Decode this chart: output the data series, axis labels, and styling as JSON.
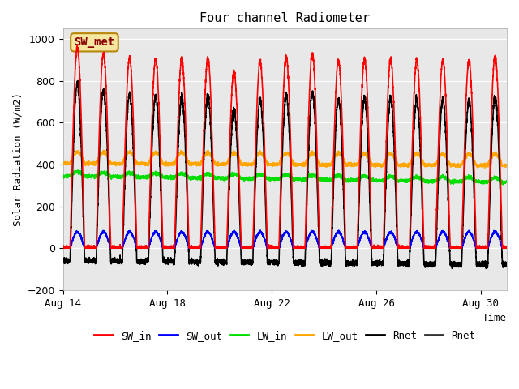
{
  "title": "Four channel Radiometer",
  "xlabel": "Time",
  "ylabel": "Solar Radiation (W/m2)",
  "ylim": [
    -200,
    1050
  ],
  "xlim": [
    0,
    17
  ],
  "xtick_labels": [
    "Aug 14",
    "Aug 18",
    "Aug 22",
    "Aug 26",
    "Aug 30"
  ],
  "xtick_positions": [
    0,
    4,
    8,
    12,
    16
  ],
  "annotation_text": "SW_met",
  "annotation_box_facecolor": "#f5e6a0",
  "annotation_box_edgecolor": "#b8860b",
  "annotation_text_color": "#8b0000",
  "bg_color": "#e8e8e8",
  "series": {
    "SW_in": {
      "color": "#ff0000",
      "linewidth": 1.2
    },
    "SW_out": {
      "color": "#0000ff",
      "linewidth": 1.2
    },
    "LW_in": {
      "color": "#00dd00",
      "linewidth": 1.2
    },
    "LW_out": {
      "color": "#ffa500",
      "linewidth": 1.2
    },
    "Rnet": {
      "color": "#000000",
      "linewidth": 1.2
    }
  },
  "legend_entries": [
    {
      "label": "SW_in",
      "color": "#ff0000"
    },
    {
      "label": "SW_out",
      "color": "#0000ff"
    },
    {
      "label": "LW_in",
      "color": "#00dd00"
    },
    {
      "label": "LW_out",
      "color": "#ffa500"
    },
    {
      "label": "Rnet",
      "color": "#000000"
    },
    {
      "label": "Rnet",
      "color": "#333333"
    }
  ],
  "figsize": [
    6.4,
    4.8
  ],
  "dpi": 100
}
